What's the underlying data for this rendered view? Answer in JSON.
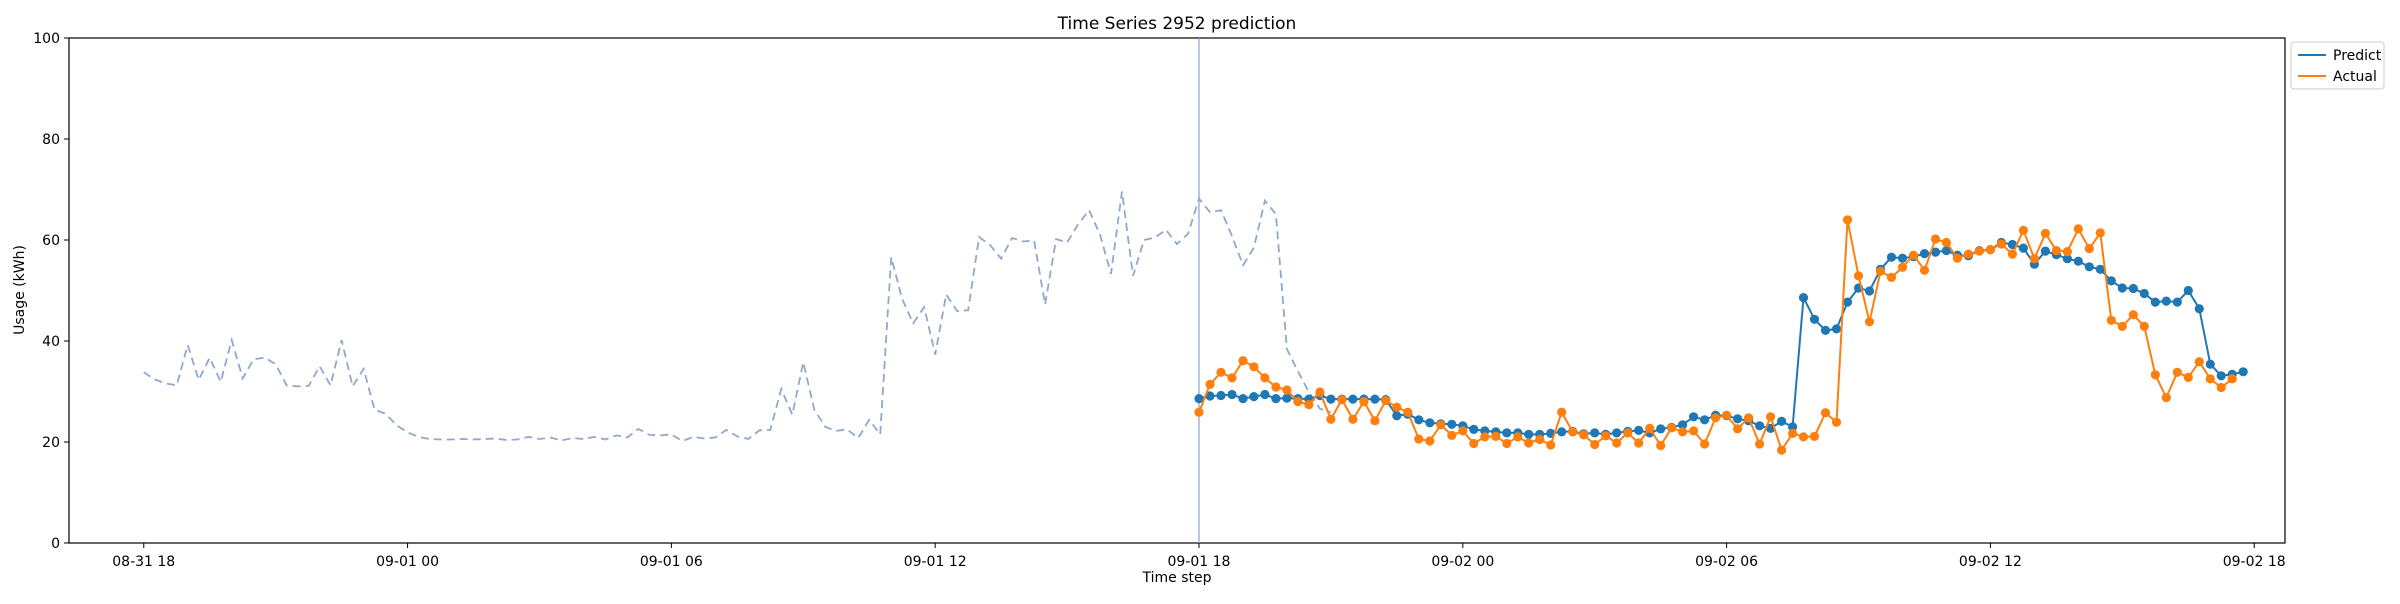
{
  "chart_data": {
    "type": "line",
    "title": "Time Series 2952 prediction",
    "xlabel": "Time step",
    "ylabel": "Usage (kWh)",
    "ylim": [
      0,
      100
    ],
    "yticks": [
      0,
      20,
      40,
      60,
      80,
      100
    ],
    "x_unit": "hours",
    "xlim": [
      -1.7,
      48.7
    ],
    "xticks": [
      {
        "x": 0,
        "label": "08-31 18"
      },
      {
        "x": 6,
        "label": "09-01 00"
      },
      {
        "x": 12,
        "label": "09-01 06"
      },
      {
        "x": 18,
        "label": "09-01 12"
      },
      {
        "x": 24,
        "label": "09-01 18"
      },
      {
        "x": 30,
        "label": "09-02 00"
      },
      {
        "x": 36,
        "label": "09-02 06"
      },
      {
        "x": 42,
        "label": "09-02 12"
      },
      {
        "x": 48,
        "label": "09-02 18"
      }
    ],
    "grid": false,
    "legend_position": "outside-top-right",
    "forecast_start_x": 24,
    "history": {
      "style": "dashed",
      "color": "#8fa8cc",
      "x_start": 0,
      "x_step": 0.25,
      "values": [
        33.8,
        32.4,
        31.6,
        31.2,
        39.2,
        32.3,
        36.7,
        31.9,
        40.2,
        32.6,
        36.4,
        36.7,
        35.4,
        31.2,
        31.0,
        31.1,
        35.0,
        31.2,
        40.2,
        31.0,
        34.5,
        26.4,
        25.6,
        23.3,
        21.9,
        21.0,
        20.6,
        20.5,
        20.5,
        20.6,
        20.5,
        20.6,
        20.7,
        20.4,
        20.5,
        21.0,
        20.6,
        20.9,
        20.3,
        20.8,
        20.6,
        21.0,
        20.5,
        21.3,
        20.9,
        22.6,
        21.4,
        21.3,
        21.5,
        20.2,
        21.0,
        20.7,
        20.9,
        22.4,
        21.1,
        20.6,
        22.3,
        22.4,
        30.5,
        25.4,
        35.8,
        26.4,
        23.0,
        22.2,
        22.5,
        20.8,
        24.4,
        21.5,
        56.6,
        48.3,
        43.5,
        46.7,
        37.3,
        49.2,
        45.9,
        46.1,
        60.6,
        59.0,
        56.3,
        60.4,
        59.7,
        59.9,
        47.2,
        60.2,
        59.5,
        63.1,
        65.9,
        61.0,
        53.3,
        69.6,
        52.9,
        60.0,
        60.5,
        62.0,
        59.2,
        61.2,
        68.2,
        65.5,
        65.9,
        60.8,
        55.0,
        58.5,
        67.8,
        65.1,
        38.4,
        34.0,
        29.9,
        26.6,
        25.9
      ]
    },
    "series": [
      {
        "name": "Predict",
        "color": "#1f77b4",
        "x_start": 24,
        "x_step": 0.25,
        "values": [
          28.6,
          29.1,
          29.2,
          29.4,
          28.6,
          29.0,
          29.4,
          28.6,
          28.7,
          28.6,
          28.5,
          29.2,
          28.5,
          28.5,
          28.5,
          28.5,
          28.5,
          28.4,
          25.2,
          25.5,
          24.4,
          23.8,
          23.6,
          23.5,
          23.2,
          22.5,
          22.2,
          22.0,
          21.8,
          21.8,
          21.5,
          21.5,
          21.7,
          22.0,
          22.1,
          21.6,
          21.8,
          21.5,
          21.8,
          22.1,
          22.3,
          21.8,
          22.6,
          22.9,
          23.4,
          25.0,
          24.4,
          25.3,
          25.2,
          24.6,
          24.2,
          23.2,
          22.7,
          24.1,
          23.0,
          48.6,
          44.3,
          42.1,
          42.4,
          47.7,
          50.5,
          49.9,
          54.2,
          56.6,
          56.4,
          56.7,
          57.3,
          57.6,
          57.9,
          57.0,
          56.9,
          57.9,
          58.1,
          59.5,
          59.1,
          58.4,
          55.2,
          57.8,
          57.1,
          56.3,
          55.8,
          54.7,
          54.2,
          51.9,
          50.5,
          50.4,
          49.4,
          47.7,
          47.9,
          47.7,
          50.0,
          46.4,
          35.4,
          33.1,
          33.4,
          33.9
        ]
      },
      {
        "name": "Actual",
        "color": "#ff7f0e",
        "x_start": 24,
        "x_step": 0.25,
        "values": [
          25.9,
          31.4,
          33.8,
          32.7,
          36.1,
          34.9,
          32.7,
          30.9,
          30.3,
          28.0,
          27.4,
          29.9,
          24.5,
          28.4,
          24.5,
          28.0,
          24.2,
          28.2,
          26.9,
          25.9,
          20.6,
          20.2,
          23.4,
          21.3,
          22.2,
          19.7,
          21.0,
          21.1,
          19.7,
          21.0,
          19.8,
          20.5,
          19.4,
          25.9,
          22.0,
          21.4,
          19.5,
          21.2,
          19.8,
          21.8,
          19.8,
          22.7,
          19.3,
          22.8,
          22.0,
          22.2,
          19.6,
          24.8,
          25.3,
          22.6,
          24.8,
          19.6,
          25.0,
          18.4,
          21.7,
          21.0,
          21.1,
          25.8,
          23.9,
          64.0,
          52.9,
          43.8,
          53.8,
          52.6,
          54.6,
          57.0,
          54.0,
          60.2,
          59.5,
          56.4,
          57.2,
          57.8,
          58.1,
          59.2,
          57.2,
          61.9,
          56.3,
          61.3,
          57.9,
          57.7,
          62.2,
          58.3,
          61.4,
          44.1,
          42.9,
          45.2,
          42.9,
          33.3,
          28.8,
          33.8,
          32.8,
          35.9,
          32.5,
          30.8,
          32.5
        ]
      }
    ]
  }
}
